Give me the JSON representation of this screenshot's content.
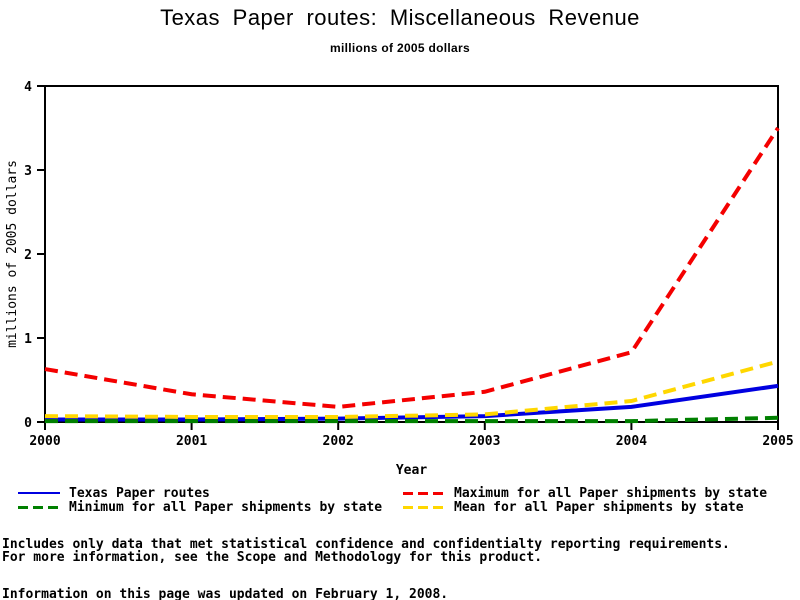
{
  "title": "Texas Paper routes: Miscellaneous Revenue",
  "subtitle": "millions of 2005 dollars",
  "chart_data": {
    "type": "line",
    "title": "Texas Paper routes: Miscellaneous Revenue",
    "subtitle": "millions of 2005 dollars",
    "x": [
      2000,
      2001,
      2002,
      2003,
      2004,
      2005
    ],
    "xticks": [
      2000,
      2001,
      2002,
      2003,
      2004,
      2005
    ],
    "yticks": [
      0,
      1,
      2,
      3,
      4
    ],
    "xlim": [
      2000,
      2005
    ],
    "ylim": [
      0,
      4
    ],
    "xlabel": "Year",
    "ylabel": "millions of 2005 dollars",
    "grid": false,
    "legend_position": "bottom",
    "series": [
      {
        "id": "texas-paper-routes",
        "name": "Texas Paper routes",
        "color": "#0000E0",
        "style": "solid",
        "values": [
          0.03,
          0.03,
          0.04,
          0.07,
          0.18,
          0.43
        ]
      },
      {
        "id": "maximum-all-states",
        "name": "Maximum for all Paper shipments by state",
        "color": "#F40000",
        "style": "dashed",
        "values": [
          0.63,
          0.33,
          0.18,
          0.36,
          0.83,
          3.5
        ]
      },
      {
        "id": "minimum-all-states",
        "name": "Minimum for all Paper shipments by state",
        "color": "#008000",
        "style": "dashed",
        "values": [
          0.01,
          0.01,
          0.01,
          0.01,
          0.01,
          0.05
        ]
      },
      {
        "id": "mean-all-states",
        "name": "Mean for all Paper shipments by state",
        "color": "#FFD700",
        "style": "dashed",
        "values": [
          0.07,
          0.06,
          0.06,
          0.09,
          0.25,
          0.72
        ]
      }
    ]
  },
  "footer": {
    "line1": "Includes only data that met statistical confidence and confidentialty reporting requirements.",
    "line2": "For more information, see the Scope and Methodology for this product.",
    "updated": "Information on this page was updated on February 1, 2008."
  }
}
